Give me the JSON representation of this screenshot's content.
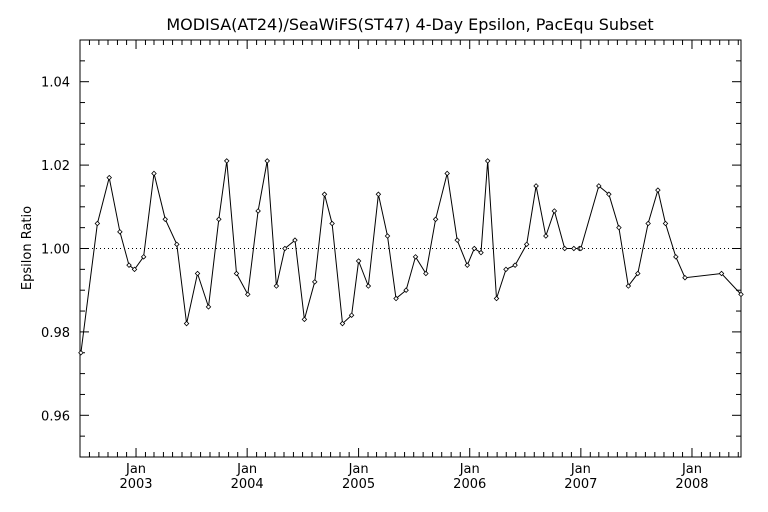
{
  "chart_data": {
    "type": "line",
    "title": "MODISA(AT24)/SeaWiFS(ST47) 4-Day Epsilon, PacEqu Subset",
    "xlabel": "",
    "ylabel": "Epsilon Ratio",
    "xlim": [
      "2002-07-01",
      "2008-06-10"
    ],
    "ylim": [
      0.95,
      1.05
    ],
    "y_ticks": [
      "0.96",
      "0.98",
      "1.00",
      "1.02",
      "1.04"
    ],
    "x_ticks": [
      {
        "month": "Jan",
        "year": "2003",
        "date": "2003-01-01"
      },
      {
        "month": "Jan",
        "year": "2004",
        "date": "2004-01-01"
      },
      {
        "month": "Jan",
        "year": "2005",
        "date": "2005-01-01"
      },
      {
        "month": "Jan",
        "year": "2006",
        "date": "2006-01-01"
      },
      {
        "month": "Jan",
        "year": "2007",
        "date": "2007-01-01"
      },
      {
        "month": "Jan",
        "year": "2008",
        "date": "2008-01-01"
      }
    ],
    "reference_line": 1.0,
    "grid": false,
    "series": [
      {
        "x": [
          "2002-07-04",
          "2002-08-27",
          "2002-10-05",
          "2002-11-09",
          "2002-12-09",
          "2002-12-27",
          "2003-01-26",
          "2003-03-01",
          "2003-04-07",
          "2003-05-15",
          "2003-06-16",
          "2003-07-22",
          "2003-08-27",
          "2003-09-30",
          "2003-10-26",
          "2003-11-27",
          "2004-01-03",
          "2004-02-06",
          "2004-03-07",
          "2004-04-06",
          "2004-05-04",
          "2004-06-06",
          "2004-07-07",
          "2004-08-10",
          "2004-09-11",
          "2004-10-06",
          "2004-11-09",
          "2004-12-09",
          "2005-01-01",
          "2005-02-02",
          "2005-03-07",
          "2005-04-06",
          "2005-05-04",
          "2005-06-06",
          "2005-07-07",
          "2005-08-10",
          "2005-09-11",
          "2005-10-19",
          "2005-11-21",
          "2005-12-24",
          "2006-01-16",
          "2006-02-07",
          "2006-03-01",
          "2006-03-30",
          "2006-04-30",
          "2006-05-30",
          "2006-07-07",
          "2006-08-07",
          "2006-09-08",
          "2006-10-06",
          "2006-11-09",
          "2006-12-09",
          "2006-12-27",
          "2007-01-01",
          "2007-03-01",
          "2007-04-03",
          "2007-05-06",
          "2007-06-06",
          "2007-07-07",
          "2007-08-10",
          "2007-09-11",
          "2007-10-06",
          "2007-11-09",
          "2007-12-09",
          "2008-04-07",
          "2008-06-10"
        ],
        "y": [
          0.975,
          1.006,
          1.017,
          1.004,
          0.996,
          0.995,
          0.998,
          1.018,
          1.007,
          1.001,
          0.982,
          0.994,
          0.986,
          1.007,
          1.021,
          0.994,
          0.989,
          1.009,
          1.021,
          0.991,
          1.0,
          1.002,
          0.983,
          0.992,
          1.013,
          1.006,
          0.982,
          0.984,
          0.997,
          0.991,
          1.013,
          1.003,
          0.988,
          0.99,
          0.998,
          0.994,
          1.007,
          1.018,
          1.002,
          0.996,
          1.0,
          0.999,
          1.021,
          0.988,
          0.995,
          0.996,
          1.001,
          1.015,
          1.003,
          1.009,
          1.0,
          1.0,
          1.0,
          1.0,
          1.015,
          1.013,
          1.005,
          0.991,
          0.994,
          1.006,
          1.014,
          1.006,
          0.998,
          0.993,
          0.994,
          0.989
        ]
      }
    ]
  }
}
